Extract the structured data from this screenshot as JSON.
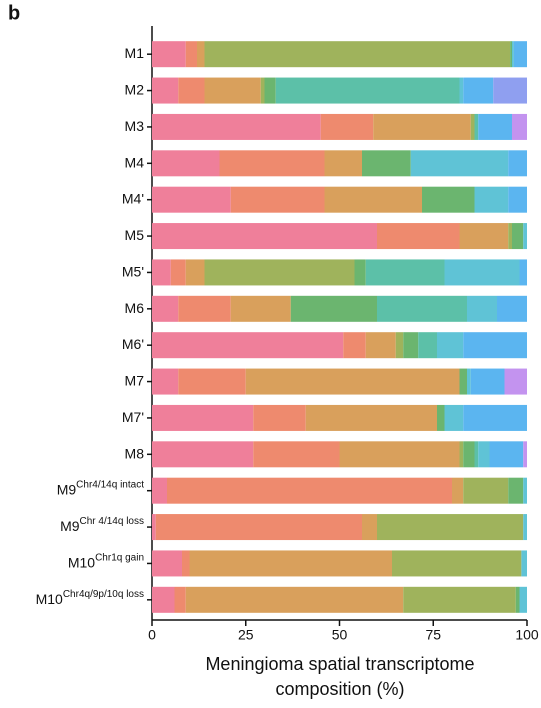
{
  "chart_data": {
    "type": "stacked-barh",
    "panel_label": "b",
    "xlabel": [
      "Meningioma spatial transcriptome",
      "composition (%)"
    ],
    "categories": [
      "M1",
      "M2",
      "M3",
      "M4",
      "M4'",
      "M5",
      "M5'",
      "M6",
      "M6'",
      "M7",
      "M7'",
      "M8",
      "M9",
      "M9",
      "M10",
      "M10"
    ],
    "category_superscripts": [
      null,
      null,
      null,
      null,
      null,
      null,
      null,
      null,
      null,
      null,
      null,
      null,
      "Chr4/14q intact",
      "Chr 4/14q loss",
      "Chr1q gain",
      "Chr4q/9p/10q loss"
    ],
    "xlim": [
      0,
      100
    ],
    "xticks": [
      0,
      25,
      50,
      75,
      100
    ],
    "series": [
      {
        "color": "#ef7f9a",
        "values": [
          9,
          7,
          45,
          18,
          21,
          60,
          5,
          7,
          51,
          7,
          27,
          27,
          4,
          1,
          8,
          6
        ]
      },
      {
        "color": "#ee8a6e",
        "values": [
          3,
          7,
          14,
          28,
          25,
          22,
          4,
          14,
          6,
          18,
          14,
          23,
          76,
          55,
          2,
          3
        ]
      },
      {
        "color": "#d9a05c",
        "values": [
          2,
          15,
          26,
          10,
          26,
          13,
          5,
          16,
          8,
          57,
          35,
          32,
          3,
          4,
          54,
          58
        ]
      },
      {
        "color": "#9fb35c",
        "values": [
          81.5,
          1,
          1,
          0,
          0,
          1,
          40,
          0,
          2,
          0,
          0,
          1,
          12,
          39,
          34.5,
          30
        ]
      },
      {
        "color": "#6bb56f",
        "values": [
          0.5,
          3,
          0,
          13,
          14,
          3,
          3,
          23,
          4,
          2,
          2,
          3,
          4,
          0,
          0,
          1
        ]
      },
      {
        "color": "#5cc0a8",
        "values": [
          0,
          49,
          1,
          0,
          0,
          0,
          21,
          24,
          5,
          0,
          0,
          1,
          0,
          0,
          0,
          0
        ]
      },
      {
        "color": "#5fc3d6",
        "values": [
          0.5,
          1,
          0,
          26,
          9,
          1,
          20,
          8,
          7,
          1,
          5,
          3,
          1,
          1,
          1.5,
          2
        ]
      },
      {
        "color": "#5bb5f0",
        "values": [
          3.5,
          8,
          9,
          5,
          5,
          0,
          2,
          8,
          17,
          9,
          17,
          9,
          0,
          0,
          0,
          0
        ]
      },
      {
        "color": "#8f9ff0",
        "values": [
          0,
          9,
          0,
          0,
          0,
          0,
          0,
          0,
          0,
          0,
          0,
          0,
          0,
          0,
          0,
          0
        ]
      },
      {
        "color": "#c393ef",
        "values": [
          0,
          0,
          4,
          0,
          0,
          0,
          0,
          0,
          0,
          6,
          0,
          1,
          0,
          0,
          0,
          0
        ]
      }
    ]
  }
}
